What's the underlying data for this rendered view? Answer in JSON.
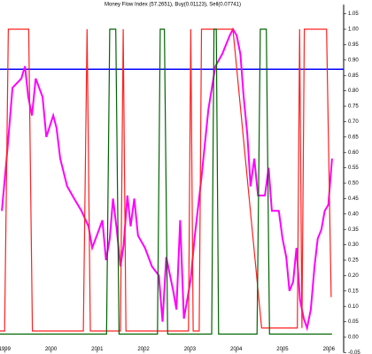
{
  "chart_data": {
    "type": "line",
    "title": "Money Flow Index (57.2651), Buy(0.01123), Sell(0.07741)",
    "xlim": [
      1998.9,
      2006.32
    ],
    "xticks": [
      1999,
      2000,
      2001,
      2002,
      2003,
      2004,
      2005,
      2006
    ],
    "ylim": [
      -0.05,
      1.08
    ],
    "yticks": [
      -0.05,
      {
        "value": 0,
        "label": "0.00"
      },
      0.05,
      {
        "value": 0.1,
        "label": "0.10"
      },
      0.15,
      {
        "value": 0.2,
        "label": "0.20"
      },
      0.25,
      {
        "value": 0.3,
        "label": "0.30"
      },
      0.35,
      {
        "value": 0.4,
        "label": "0.40"
      },
      0.45,
      {
        "value": 0.5,
        "label": "0.50"
      },
      0.55,
      {
        "value": 0.6,
        "label": "0.60"
      },
      0.65,
      {
        "value": 0.7,
        "label": "0.70"
      },
      0.75,
      {
        "value": 0.8,
        "label": "0.80"
      },
      0.85,
      {
        "value": 0.9,
        "label": "0.90"
      },
      0.95,
      {
        "value": 1,
        "label": "1.00"
      },
      1.05
    ],
    "hline": {
      "value": 0.87,
      "color": "#0000ff"
    },
    "series": [
      {
        "color": "#ff00ff",
        "x": [
          1998.94,
          1999.06,
          1999.17,
          1999.36,
          1999.44,
          1999.51,
          1999.59,
          1999.67,
          1999.82,
          1999.9,
          2000.05,
          2000.12,
          2000.2,
          2000.35,
          2000.5,
          2000.66,
          2000.81,
          2000.89,
          2001.04,
          2001.11,
          2001.19,
          2001.27,
          2001.34,
          2001.42,
          2001.5,
          2001.57,
          2001.65,
          2001.72,
          2001.8,
          2001.88,
          2002.03,
          2002.18,
          2002.33,
          2002.41,
          2002.49,
          2002.64,
          2002.71,
          2002.79,
          2002.87,
          2002.94,
          2003.02,
          2003.1,
          2003.25,
          2003.4,
          2003.55,
          2003.7,
          2003.86,
          2003.93,
          2004.01,
          2004.09,
          2004.16,
          2004.24,
          2004.31,
          2004.39,
          2004.47,
          2004.62,
          2004.7,
          2004.77,
          2004.92,
          2005.0,
          2005.08,
          2005.15,
          2005.23,
          2005.3,
          2005.38,
          2005.46,
          2005.53,
          2005.61,
          2005.69,
          2005.76,
          2005.84,
          2005.91,
          2005.99,
          2006.07
        ],
        "values": [
          0.41,
          0.61,
          0.81,
          0.84,
          0.88,
          0.78,
          0.72,
          0.84,
          0.78,
          0.65,
          0.72,
          0.68,
          0.58,
          0.49,
          0.45,
          0.41,
          0.36,
          0.29,
          0.35,
          0.38,
          0.25,
          0.32,
          0.45,
          0.35,
          0.23,
          0.3,
          0.46,
          0.36,
          0.45,
          0.33,
          0.29,
          0.23,
          0.2,
          0.05,
          0.26,
          0.15,
          0.09,
          0.38,
          0.06,
          0.12,
          0.19,
          0.32,
          0.52,
          0.74,
          0.88,
          0.92,
          0.98,
          1.0,
          0.98,
          0.92,
          0.78,
          0.66,
          0.49,
          0.58,
          0.46,
          0.46,
          0.55,
          0.41,
          0.41,
          0.32,
          0.26,
          0.15,
          0.18,
          0.29,
          0.12,
          0.06,
          0.03,
          0.09,
          0.23,
          0.32,
          0.35,
          0.41,
          0.43,
          0.58
        ]
      },
      {
        "color": "#ff2020",
        "x": [
          1998.9,
          1999.0,
          1999.08,
          1999.52,
          1999.6,
          2000.7,
          2000.78,
          2000.85,
          2001.5,
          2001.56,
          2001.62,
          2002.97,
          2003.02,
          2003.07,
          2003.2,
          2003.25,
          2003.93,
          2004.55,
          2005.32,
          2005.37,
          2005.42,
          2005.47,
          2005.95,
          2006.05
        ],
        "values": [
          0.02,
          0.02,
          1.0,
          1.0,
          0.02,
          0.02,
          1.0,
          0.02,
          0.02,
          1.0,
          0.02,
          0.02,
          1.0,
          0.02,
          0.02,
          1.0,
          1.0,
          0.03,
          0.03,
          1.0,
          0.03,
          1.0,
          1.0,
          0.13
        ]
      },
      {
        "color": "#006400",
        "x": [
          1998.9,
          2001.2,
          2001.27,
          2001.4,
          2001.47,
          2002.3,
          2002.36,
          2002.45,
          2002.52,
          2003.47,
          2003.52,
          2003.57,
          2003.62,
          2004.45,
          2004.52,
          2004.65,
          2004.72,
          2006.07
        ],
        "values": [
          0.01,
          0.01,
          1.0,
          1.0,
          0.01,
          0.01,
          1.0,
          1.0,
          0.01,
          0.01,
          1.0,
          1.0,
          0.01,
          0.01,
          1.0,
          1.0,
          0.01,
          0.01
        ]
      }
    ]
  }
}
